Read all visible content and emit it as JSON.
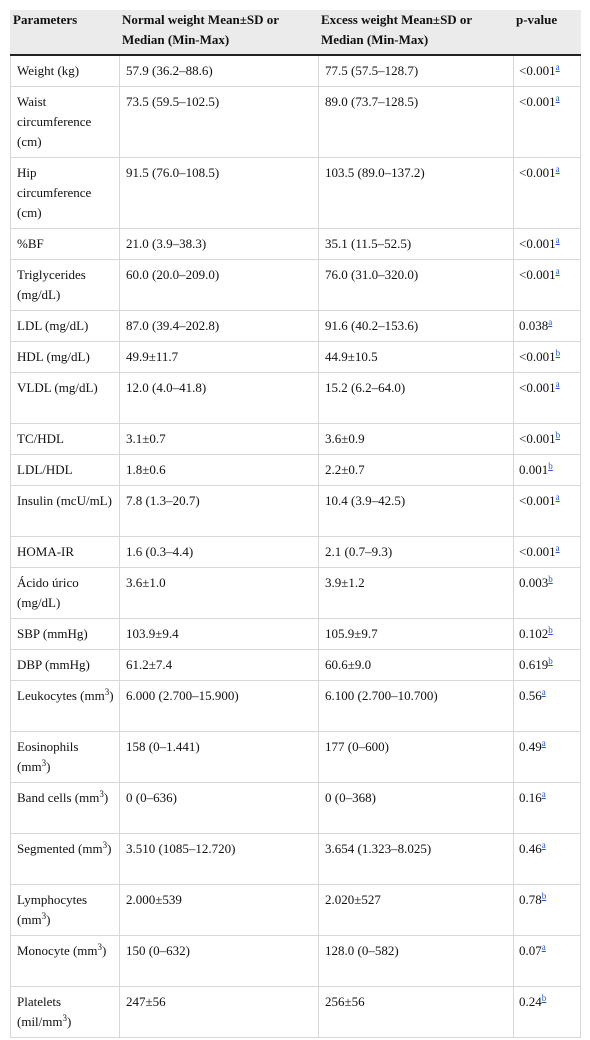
{
  "header": {
    "parameters": "Parameters",
    "normal": "Normal weight Mean±SD or Median (Min-Max)",
    "excess": "Excess weight Mean±SD or Median (Min-Max)",
    "pvalue": "p-value"
  },
  "rows": [
    {
      "param": "Weight (kg)",
      "sup": "",
      "unit_close": "",
      "normal": "57.9 (36.2–88.6)",
      "excess": "77.5 (57.5–128.7)",
      "p": "<0.001",
      "fn": "a"
    },
    {
      "param": "Waist circumference (cm)",
      "sup": "",
      "unit_close": "",
      "normal": "73.5 (59.5–102.5)",
      "excess": "89.0 (73.7–128.5)",
      "p": "<0.001",
      "fn": "a"
    },
    {
      "param": "Hip circumference (cm)",
      "sup": "",
      "unit_close": "",
      "normal": "91.5 (76.0–108.5)",
      "excess": "103.5 (89.0–137.2)",
      "p": "<0.001",
      "fn": "a"
    },
    {
      "param": "%BF",
      "sup": "",
      "unit_close": "",
      "normal": "21.0 (3.9–38.3)",
      "excess": "35.1 (11.5–52.5)",
      "p": "<0.001",
      "fn": "a"
    },
    {
      "param": "Triglycerides (mg/dL)",
      "sup": "",
      "unit_close": "",
      "normal": "60.0 (20.0–209.0)",
      "excess": "76.0 (31.0–320.0)",
      "p": "<0.001",
      "fn": "a"
    },
    {
      "param": "LDL (mg/dL)",
      "sup": "",
      "unit_close": "",
      "normal": "87.0 (39.4–202.8)",
      "excess": "91.6 (40.2–153.6)",
      "p": "0.038",
      "fn": "a"
    },
    {
      "param": "HDL (mg/dL)",
      "sup": "",
      "unit_close": "",
      "normal": "49.9±11.7",
      "excess": "44.9±10.5",
      "p": "<0.001",
      "fn": "b"
    },
    {
      "param": "VLDL (mg/dL)",
      "sup": "",
      "unit_close": "",
      "normal": "12.0 (4.0–41.8)",
      "excess": "15.2 (6.2–64.0)",
      "p": "<0.001",
      "fn": "a"
    },
    {
      "param": "TC/HDL",
      "sup": "",
      "unit_close": "",
      "normal": "3.1±0.7",
      "excess": "3.6±0.9",
      "p": "<0.001",
      "fn": "b"
    },
    {
      "param": "LDL/HDL",
      "sup": "",
      "unit_close": "",
      "normal": "1.8±0.6",
      "excess": "2.2±0.7",
      "p": "0.001",
      "fn": "b"
    },
    {
      "param": "Insulin (mcU/mL)",
      "sup": "",
      "unit_close": "",
      "normal": "7.8 (1.3–20.7)",
      "excess": "10.4 (3.9–42.5)",
      "p": "<0.001",
      "fn": "a"
    },
    {
      "param": "HOMA-IR",
      "sup": "",
      "unit_close": "",
      "normal": "1.6 (0.3–4.4)",
      "excess": "2.1 (0.7–9.3)",
      "p": "<0.001",
      "fn": "a"
    },
    {
      "param": "Ácido úrico (mg/dL)",
      "sup": "",
      "unit_close": "",
      "normal": "3.6±1.0",
      "excess": "3.9±1.2",
      "p": "0.003",
      "fn": "b"
    },
    {
      "param": "SBP (mmHg)",
      "sup": "",
      "unit_close": "",
      "normal": "103.9±9.4",
      "excess": "105.9±9.7",
      "p": "0.102",
      "fn": "b"
    },
    {
      "param": "DBP (mmHg)",
      "sup": "",
      "unit_close": "",
      "normal": "61.2±7.4",
      "excess": "60.6±9.0",
      "p": "0.619",
      "fn": "b"
    },
    {
      "param": "Leukocytes (mm",
      "sup": "3",
      "unit_close": ")",
      "normal": "6.000 (2.700–15.900)",
      "excess": "6.100 (2.700–10.700)",
      "p": "0.56",
      "fn": "a"
    },
    {
      "param": "Eosinophils (mm",
      "sup": "3",
      "unit_close": ")",
      "normal": "158 (0–1.441)",
      "excess": "177 (0–600)",
      "p": "0.49",
      "fn": "a"
    },
    {
      "param": "Band cells (mm",
      "sup": "3",
      "unit_close": ")",
      "normal": "0 (0–636)",
      "excess": "0 (0–368)",
      "p": "0.16",
      "fn": "a"
    },
    {
      "param": "Segmented (mm",
      "sup": "3",
      "unit_close": ")",
      "normal": "3.510 (1085–12.720)",
      "excess": "3.654 (1.323–8.025)",
      "p": "0.46",
      "fn": "a"
    },
    {
      "param": "Lymphocytes (mm",
      "sup": "3",
      "unit_close": ")",
      "normal": "2.000±539",
      "excess": "2.020±527",
      "p": "0.78",
      "fn": "b"
    },
    {
      "param": "Monocyte (mm",
      "sup": "3",
      "unit_close": ")",
      "normal": "150 (0–632)",
      "excess": "128.0 (0–582)",
      "p": "0.07",
      "fn": "a"
    },
    {
      "param": "Platelets (mil/mm",
      "sup": "3",
      "unit_close": ")",
      "normal": "247±56",
      "excess": "256±56",
      "p": "0.24",
      "fn": "b"
    }
  ]
}
